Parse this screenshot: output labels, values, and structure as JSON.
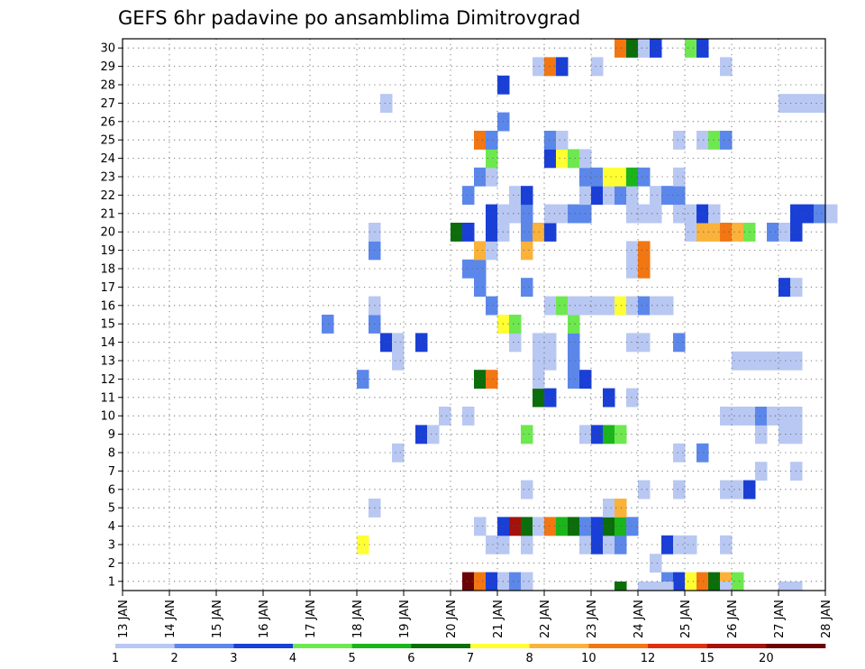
{
  "chart_data": {
    "type": "heatmap",
    "title": "GEFS 6hr padavine po ansamblima Dimitrovgrad",
    "x_ticks": [
      "13 JAN",
      "14 JAN",
      "15 JAN",
      "16 JAN",
      "17 JAN",
      "18 JAN",
      "19 JAN",
      "20 JAN",
      "21 JAN",
      "22 JAN",
      "23 JAN",
      "24 JAN",
      "25 JAN",
      "26 JAN",
      "27 JAN",
      "28 JAN"
    ],
    "xlim": [
      13,
      28
    ],
    "members": [
      1,
      2,
      3,
      4,
      5,
      6,
      7,
      8,
      9,
      10,
      11,
      12,
      13,
      14,
      15,
      16,
      17,
      18,
      19,
      20,
      21,
      22,
      23,
      24,
      25,
      26,
      27,
      28,
      29,
      30
    ],
    "step_hours": 6,
    "grid": true,
    "colorbar": {
      "labels": [
        "1",
        "2",
        "3",
        "4",
        "5",
        "6",
        "7",
        "8",
        "10",
        "12",
        "15",
        "20"
      ],
      "colors": [
        "#b8c8f2",
        "#5c87ea",
        "#1a3fd6",
        "#6ee84f",
        "#1bb51b",
        "#0b6e0b",
        "#ffff33",
        "#fbb23a",
        "#f27612",
        "#e0300f",
        "#a5110b",
        "#6b0505"
      ]
    },
    "cells": [
      {
        "m": 1,
        "t": 20.25,
        "c": 12
      },
      {
        "m": 1,
        "t": 20.5,
        "c": 9
      },
      {
        "m": 1,
        "t": 20.75,
        "c": 3
      },
      {
        "m": 1,
        "t": 21.0,
        "c": 1
      },
      {
        "m": 1,
        "t": 21.25,
        "c": 2
      },
      {
        "m": 1,
        "t": 21.5,
        "c": 1
      },
      {
        "m": 1,
        "t": 24.5,
        "c": 2
      },
      {
        "m": 1,
        "t": 24.75,
        "c": 3
      },
      {
        "m": 1,
        "t": 25.0,
        "c": 7
      },
      {
        "m": 1,
        "t": 25.25,
        "c": 9
      },
      {
        "m": 1,
        "t": 25.5,
        "c": 6
      },
      {
        "m": 1,
        "t": 25.75,
        "c": 8
      },
      {
        "m": 1,
        "t": 26.0,
        "c": 4
      },
      {
        "m": 2,
        "t": 24.25,
        "c": 1
      },
      {
        "m": 3,
        "t": 18.0,
        "c": 7
      },
      {
        "m": 3,
        "t": 20.75,
        "c": 1
      },
      {
        "m": 3,
        "t": 21.0,
        "c": 1
      },
      {
        "m": 3,
        "t": 21.5,
        "c": 1
      },
      {
        "m": 3,
        "t": 22.75,
        "c": 1
      },
      {
        "m": 3,
        "t": 23.0,
        "c": 3
      },
      {
        "m": 3,
        "t": 23.25,
        "c": 1
      },
      {
        "m": 3,
        "t": 23.5,
        "c": 2
      },
      {
        "m": 3,
        "t": 24.5,
        "c": 3
      },
      {
        "m": 3,
        "t": 24.75,
        "c": 1
      },
      {
        "m": 3,
        "t": 25.0,
        "c": 1
      },
      {
        "m": 3,
        "t": 25.75,
        "c": 1
      },
      {
        "m": 4,
        "t": 20.5,
        "c": 1
      },
      {
        "m": 4,
        "t": 21.0,
        "c": 3
      },
      {
        "m": 4,
        "t": 21.25,
        "c": 11
      },
      {
        "m": 4,
        "t": 21.5,
        "c": 6
      },
      {
        "m": 4,
        "t": 21.75,
        "c": 1
      },
      {
        "m": 4,
        "t": 22.0,
        "c": 9
      },
      {
        "m": 4,
        "t": 22.25,
        "c": 5
      },
      {
        "m": 4,
        "t": 22.5,
        "c": 6
      },
      {
        "m": 4,
        "t": 22.75,
        "c": 2
      },
      {
        "m": 4,
        "t": 23.0,
        "c": 3
      },
      {
        "m": 4,
        "t": 23.25,
        "c": 6
      },
      {
        "m": 4,
        "t": 23.5,
        "c": 5
      },
      {
        "m": 4,
        "t": 23.75,
        "c": 2
      },
      {
        "m": 5,
        "t": 18.25,
        "c": 1
      },
      {
        "m": 5,
        "t": 23.25,
        "c": 1
      },
      {
        "m": 5,
        "t": 23.5,
        "c": 8
      },
      {
        "m": 6,
        "t": 21.5,
        "c": 1
      },
      {
        "m": 6,
        "t": 24.0,
        "c": 1
      },
      {
        "m": 6,
        "t": 24.75,
        "c": 1
      },
      {
        "m": 6,
        "t": 25.75,
        "c": 1
      },
      {
        "m": 6,
        "t": 26.0,
        "c": 1
      },
      {
        "m": 6,
        "t": 26.25,
        "c": 3
      },
      {
        "m": 7,
        "t": 26.5,
        "c": 1
      },
      {
        "m": 7,
        "t": 27.25,
        "c": 1
      },
      {
        "m": 8,
        "t": 18.75,
        "c": 1
      },
      {
        "m": 8,
        "t": 24.75,
        "c": 1
      },
      {
        "m": 8,
        "t": 25.25,
        "c": 2
      },
      {
        "m": 9,
        "t": 19.25,
        "c": 3
      },
      {
        "m": 9,
        "t": 19.5,
        "c": 1
      },
      {
        "m": 9,
        "t": 21.5,
        "c": 4
      },
      {
        "m": 9,
        "t": 22.75,
        "c": 1
      },
      {
        "m": 9,
        "t": 23.0,
        "c": 3
      },
      {
        "m": 9,
        "t": 23.25,
        "c": 5
      },
      {
        "m": 9,
        "t": 23.5,
        "c": 4
      },
      {
        "m": 9,
        "t": 26.5,
        "c": 1
      },
      {
        "m": 9,
        "t": 27.0,
        "c": 1
      },
      {
        "m": 9,
        "t": 27.25,
        "c": 1
      },
      {
        "m": 10,
        "t": 19.75,
        "c": 1
      },
      {
        "m": 10,
        "t": 20.25,
        "c": 1
      },
      {
        "m": 10,
        "t": 25.75,
        "c": 1
      },
      {
        "m": 10,
        "t": 26.0,
        "c": 1
      },
      {
        "m": 10,
        "t": 26.25,
        "c": 1
      },
      {
        "m": 10,
        "t": 26.5,
        "c": 2
      },
      {
        "m": 10,
        "t": 26.75,
        "c": 1
      },
      {
        "m": 10,
        "t": 27.0,
        "c": 1
      },
      {
        "m": 10,
        "t": 27.25,
        "c": 1
      },
      {
        "m": 11,
        "t": 21.75,
        "c": 6
      },
      {
        "m": 11,
        "t": 22.0,
        "c": 3
      },
      {
        "m": 11,
        "t": 23.25,
        "c": 3
      },
      {
        "m": 11,
        "t": 23.75,
        "c": 1
      },
      {
        "m": 12,
        "t": 18.0,
        "c": 2
      },
      {
        "m": 12,
        "t": 20.5,
        "c": 6
      },
      {
        "m": 12,
        "t": 20.75,
        "c": 9
      },
      {
        "m": 12,
        "t": 21.75,
        "c": 1
      },
      {
        "m": 12,
        "t": 22.5,
        "c": 2
      },
      {
        "m": 12,
        "t": 22.75,
        "c": 3
      },
      {
        "m": 13,
        "t": 18.75,
        "c": 1
      },
      {
        "m": 13,
        "t": 21.75,
        "c": 1
      },
      {
        "m": 13,
        "t": 22.0,
        "c": 1
      },
      {
        "m": 13,
        "t": 22.5,
        "c": 2
      },
      {
        "m": 13,
        "t": 26.0,
        "c": 1
      },
      {
        "m": 13,
        "t": 26.25,
        "c": 1
      },
      {
        "m": 13,
        "t": 26.5,
        "c": 1
      },
      {
        "m": 13,
        "t": 26.75,
        "c": 1
      },
      {
        "m": 13,
        "t": 27.0,
        "c": 1
      },
      {
        "m": 13,
        "t": 27.25,
        "c": 1
      },
      {
        "m": 14,
        "t": 18.5,
        "c": 3
      },
      {
        "m": 14,
        "t": 18.75,
        "c": 1
      },
      {
        "m": 14,
        "t": 19.25,
        "c": 3
      },
      {
        "m": 14,
        "t": 21.25,
        "c": 1
      },
      {
        "m": 14,
        "t": 21.75,
        "c": 1
      },
      {
        "m": 14,
        "t": 22.0,
        "c": 1
      },
      {
        "m": 14,
        "t": 22.5,
        "c": 2
      },
      {
        "m": 14,
        "t": 23.75,
        "c": 1
      },
      {
        "m": 14,
        "t": 24.0,
        "c": 1
      },
      {
        "m": 14,
        "t": 24.75,
        "c": 2
      },
      {
        "m": 15,
        "t": 17.25,
        "c": 2
      },
      {
        "m": 15,
        "t": 18.25,
        "c": 2
      },
      {
        "m": 15,
        "t": 21.0,
        "c": 7
      },
      {
        "m": 15,
        "t": 21.25,
        "c": 4
      },
      {
        "m": 15,
        "t": 22.5,
        "c": 4
      },
      {
        "m": 16,
        "t": 18.25,
        "c": 1
      },
      {
        "m": 16,
        "t": 20.75,
        "c": 2
      },
      {
        "m": 16,
        "t": 22.0,
        "c": 1
      },
      {
        "m": 16,
        "t": 22.25,
        "c": 4
      },
      {
        "m": 16,
        "t": 22.5,
        "c": 1
      },
      {
        "m": 16,
        "t": 22.75,
        "c": 1
      },
      {
        "m": 16,
        "t": 23.0,
        "c": 1
      },
      {
        "m": 16,
        "t": 23.25,
        "c": 1
      },
      {
        "m": 16,
        "t": 23.5,
        "c": 7
      },
      {
        "m": 16,
        "t": 23.75,
        "c": 1
      },
      {
        "m": 16,
        "t": 24.0,
        "c": 2
      },
      {
        "m": 16,
        "t": 24.25,
        "c": 1
      },
      {
        "m": 16,
        "t": 24.5,
        "c": 1
      },
      {
        "m": 17,
        "t": 20.5,
        "c": 2
      },
      {
        "m": 17,
        "t": 21.5,
        "c": 2
      },
      {
        "m": 17,
        "t": 27.0,
        "c": 3
      },
      {
        "m": 17,
        "t": 27.25,
        "c": 1
      },
      {
        "m": 18,
        "t": 20.25,
        "c": 2
      },
      {
        "m": 18,
        "t": 20.5,
        "c": 2
      },
      {
        "m": 18,
        "t": 23.75,
        "c": 1
      },
      {
        "m": 18,
        "t": 24.0,
        "c": 9
      },
      {
        "m": 19,
        "t": 18.25,
        "c": 2
      },
      {
        "m": 19,
        "t": 20.5,
        "c": 8
      },
      {
        "m": 19,
        "t": 20.75,
        "c": 1
      },
      {
        "m": 19,
        "t": 21.5,
        "c": 8
      },
      {
        "m": 19,
        "t": 23.75,
        "c": 1
      },
      {
        "m": 19,
        "t": 24.0,
        "c": 9
      },
      {
        "m": 20,
        "t": 18.25,
        "c": 1
      },
      {
        "m": 20,
        "t": 20.0,
        "c": 6
      },
      {
        "m": 20,
        "t": 20.25,
        "c": 3
      },
      {
        "m": 20,
        "t": 20.75,
        "c": 3
      },
      {
        "m": 20,
        "t": 21.0,
        "c": 1
      },
      {
        "m": 20,
        "t": 21.5,
        "c": 2
      },
      {
        "m": 20,
        "t": 21.75,
        "c": 8
      },
      {
        "m": 20,
        "t": 22.0,
        "c": 3
      },
      {
        "m": 20,
        "t": 25.0,
        "c": 1
      },
      {
        "m": 20,
        "t": 25.25,
        "c": 8
      },
      {
        "m": 20,
        "t": 25.5,
        "c": 8
      },
      {
        "m": 20,
        "t": 25.75,
        "c": 9
      },
      {
        "m": 20,
        "t": 26.0,
        "c": 8
      },
      {
        "m": 20,
        "t": 26.25,
        "c": 4
      },
      {
        "m": 20,
        "t": 26.75,
        "c": 2
      },
      {
        "m": 20,
        "t": 27.0,
        "c": 1
      },
      {
        "m": 20,
        "t": 27.25,
        "c": 3
      },
      {
        "m": 21,
        "t": 20.75,
        "c": 3
      },
      {
        "m": 21,
        "t": 21.0,
        "c": 1
      },
      {
        "m": 21,
        "t": 21.25,
        "c": 1
      },
      {
        "m": 21,
        "t": 21.5,
        "c": 2
      },
      {
        "m": 21,
        "t": 22.0,
        "c": 1
      },
      {
        "m": 21,
        "t": 22.25,
        "c": 1
      },
      {
        "m": 21,
        "t": 22.5,
        "c": 2
      },
      {
        "m": 21,
        "t": 22.75,
        "c": 2
      },
      {
        "m": 21,
        "t": 23.75,
        "c": 1
      },
      {
        "m": 21,
        "t": 24.0,
        "c": 1
      },
      {
        "m": 21,
        "t": 24.25,
        "c": 1
      },
      {
        "m": 21,
        "t": 24.75,
        "c": 1
      },
      {
        "m": 21,
        "t": 25.0,
        "c": 1
      },
      {
        "m": 21,
        "t": 25.25,
        "c": 3
      },
      {
        "m": 21,
        "t": 25.5,
        "c": 1
      },
      {
        "m": 21,
        "t": 27.25,
        "c": 3
      },
      {
        "m": 21,
        "t": 27.5,
        "c": 3
      },
      {
        "m": 21,
        "t": 27.75,
        "c": 2
      },
      {
        "m": 21,
        "t": 28.0,
        "c": 1
      },
      {
        "m": 22,
        "t": 20.25,
        "c": 2
      },
      {
        "m": 22,
        "t": 21.25,
        "c": 1
      },
      {
        "m": 22,
        "t": 21.5,
        "c": 3
      },
      {
        "m": 22,
        "t": 22.75,
        "c": 1
      },
      {
        "m": 22,
        "t": 23.0,
        "c": 3
      },
      {
        "m": 22,
        "t": 23.25,
        "c": 1
      },
      {
        "m": 22,
        "t": 23.5,
        "c": 2
      },
      {
        "m": 22,
        "t": 23.75,
        "c": 1
      },
      {
        "m": 22,
        "t": 24.25,
        "c": 1
      },
      {
        "m": 22,
        "t": 24.5,
        "c": 2
      },
      {
        "m": 22,
        "t": 24.75,
        "c": 2
      },
      {
        "m": 23,
        "t": 20.5,
        "c": 2
      },
      {
        "m": 23,
        "t": 20.75,
        "c": 1
      },
      {
        "m": 23,
        "t": 22.75,
        "c": 2
      },
      {
        "m": 23,
        "t": 23.0,
        "c": 2
      },
      {
        "m": 23,
        "t": 23.25,
        "c": 7
      },
      {
        "m": 23,
        "t": 23.5,
        "c": 7
      },
      {
        "m": 23,
        "t": 23.75,
        "c": 5
      },
      {
        "m": 23,
        "t": 24.0,
        "c": 2
      },
      {
        "m": 23,
        "t": 24.75,
        "c": 1
      },
      {
        "m": 24,
        "t": 20.75,
        "c": 4
      },
      {
        "m": 24,
        "t": 22.0,
        "c": 3
      },
      {
        "m": 24,
        "t": 22.25,
        "c": 7
      },
      {
        "m": 24,
        "t": 22.5,
        "c": 4
      },
      {
        "m": 24,
        "t": 22.75,
        "c": 1
      },
      {
        "m": 25,
        "t": 20.5,
        "c": 9
      },
      {
        "m": 25,
        "t": 20.75,
        "c": 2
      },
      {
        "m": 25,
        "t": 22.0,
        "c": 2
      },
      {
        "m": 25,
        "t": 22.25,
        "c": 1
      },
      {
        "m": 25,
        "t": 24.75,
        "c": 1
      },
      {
        "m": 25,
        "t": 25.25,
        "c": 1
      },
      {
        "m": 25,
        "t": 25.5,
        "c": 4
      },
      {
        "m": 25,
        "t": 25.75,
        "c": 2
      },
      {
        "m": 26,
        "t": 21.0,
        "c": 2
      },
      {
        "m": 27,
        "t": 18.5,
        "c": 1
      },
      {
        "m": 27,
        "t": 27.0,
        "c": 1
      },
      {
        "m": 27,
        "t": 27.25,
        "c": 1
      },
      {
        "m": 27,
        "t": 27.5,
        "c": 1
      },
      {
        "m": 27,
        "t": 27.75,
        "c": 1
      },
      {
        "m": 28,
        "t": 21.0,
        "c": 3
      },
      {
        "m": 29,
        "t": 21.75,
        "c": 1
      },
      {
        "m": 29,
        "t": 22.0,
        "c": 9
      },
      {
        "m": 29,
        "t": 22.25,
        "c": 3
      },
      {
        "m": 29,
        "t": 23.0,
        "c": 1
      },
      {
        "m": 29,
        "t": 25.75,
        "c": 1
      },
      {
        "m": 30,
        "t": 23.5,
        "c": 9
      },
      {
        "m": 30,
        "t": 23.75,
        "c": 6
      },
      {
        "m": 30,
        "t": 24.0,
        "c": 1
      },
      {
        "m": 30,
        "t": 24.25,
        "c": 3
      },
      {
        "m": 30,
        "t": 25.0,
        "c": 4
      },
      {
        "m": 30,
        "t": 25.25,
        "c": 3
      }
    ],
    "extra_cells": [
      {
        "t": 23.5,
        "c": 6
      },
      {
        "t": 24.0,
        "c": 1
      },
      {
        "t": 24.25,
        "c": 1
      },
      {
        "t": 24.5,
        "c": 1
      },
      {
        "t": 25.75,
        "c": 1
      },
      {
        "t": 27.0,
        "c": 1
      },
      {
        "t": 27.25,
        "c": 1
      }
    ]
  }
}
